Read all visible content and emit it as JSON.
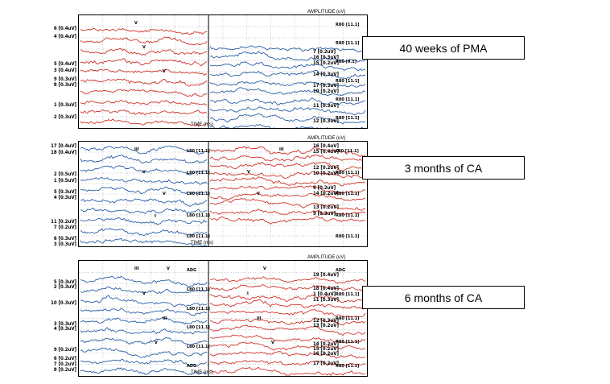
{
  "panels": [
    {
      "caption": "40 weeks of PMA",
      "amplitude_label": "AMPLITUDE (uV)",
      "time_label": "TIME (ms)",
      "left_colors": [
        "#d0342b",
        "#d0342b",
        "#d0342b",
        "#d0342b",
        "#d0342b",
        "#d0342b",
        "#d0342b",
        "#d0342b",
        "#d0342b",
        "#d0342b"
      ],
      "right_colors": [
        "#2c5fa8",
        "#2c5fa8",
        "#2c5fa8",
        "#2c5fa8",
        "#2c5fa8",
        "#2c5fa8",
        "#2c5fa8",
        "#2c5fa8",
        "#2c5fa8",
        "#2c5fa8"
      ],
      "left_labels": [
        "6 [0.4uV]",
        "4 [0.4uV]",
        "5 [0.4uV]",
        "3 [0.4uV]",
        "9 [0.3uV]",
        "8 [0.3uV]",
        "1 [0.3uV]",
        "2 [0.3uV]"
      ],
      "right_labels": [
        "7 [0.2uV]",
        "16 [0.3uV]",
        "15 [0.2uV]",
        "14 [0.3uV]",
        "17 [0.3uV]",
        "10 [0.2uV]",
        "11 [0.3uV]",
        "12 [0.3uV]"
      ],
      "trace_tags": [
        "R80 [11.1]",
        "R80 [11.1]",
        "R80 [9.1]",
        "R80 [11.1]",
        "R80 [11.1]",
        "R80 [11.1]"
      ],
      "peak_marks": [
        "V",
        "V",
        "V"
      ]
    },
    {
      "caption": "3 months of CA",
      "amplitude_label": "AMPLITUDE (uV)",
      "time_label": "TIME (ms)",
      "left_colors": [
        "#2c5fa8"
      ],
      "right_colors": [
        "#d0342b"
      ],
      "left_labels": [
        "17 [0.4uV]",
        "18 [0.4uV]",
        "2 [0.5uV]",
        "1 [0.5uV]",
        "5 [0.3uV]",
        "4 [0.3uV]",
        "11 [0.2uV]",
        "7 [0.2uV]",
        "6 [0.3uV]",
        "3 [0.3uV]"
      ],
      "right_labels": [
        "16 [0.4uV]",
        "15 [0.4uV]",
        "12 [0.2uV]",
        "10 [0.2uV]",
        "6 [0.2uV]",
        "14 [0.2uV]",
        "13 [0.2uV]",
        "9 [0.3uV]"
      ],
      "trace_tags": [
        "L80 [11.1]",
        "L80 [11.1]",
        "L80 [11.1]",
        "L80 [11.1]",
        "L80 [11.1]",
        "L80 [11.1]",
        "R80 [11.1]",
        "R80 [11.1]",
        "R80 [11.1]",
        "R80 [11.1]"
      ],
      "peak_marks": [
        "III",
        "V",
        "V",
        "I",
        "III",
        "V",
        "V"
      ]
    },
    {
      "caption": "6 months of CA",
      "amplitude_label": "AMPLITUDE (uV)",
      "time_label": "TIME (ms)",
      "left_colors": [
        "#2c5fa8"
      ],
      "right_colors": [
        "#d0342b"
      ],
      "left_labels": [
        "5 [0.3uV]",
        "2 [0.3uV]",
        "10 [0.3uV]",
        "3 [0.3uV]",
        "4 [0.3uV]",
        "9 [0.2uV]",
        "6 [0.2uV]",
        "7 [0.2uV]",
        "8 [0.2uV]"
      ],
      "right_labels": [
        "19 [0.4uV]",
        "18 [0.4uV]",
        "1 [0.4uV]",
        "11 [0.3uV]",
        "12 [0.3uV]",
        "13 [0.2uV]",
        "14 [0.2uV]",
        "15 [0.2uV]",
        "16 [0.2uV]",
        "17 [0.2uV]"
      ],
      "trace_tags": [
        "ADG",
        "L80 [11.1]",
        "L80 [11.1]",
        "L80 [11.1]",
        "L80 [11.1]",
        "ADG",
        "ADG",
        "R80 [11.1]",
        "R80 [11.1]",
        "R80 [11.1]",
        "R80 [11.1]"
      ],
      "peak_marks": [
        "III",
        "V",
        "III",
        "V",
        "V",
        "I",
        "III",
        "V",
        "V"
      ]
    }
  ]
}
